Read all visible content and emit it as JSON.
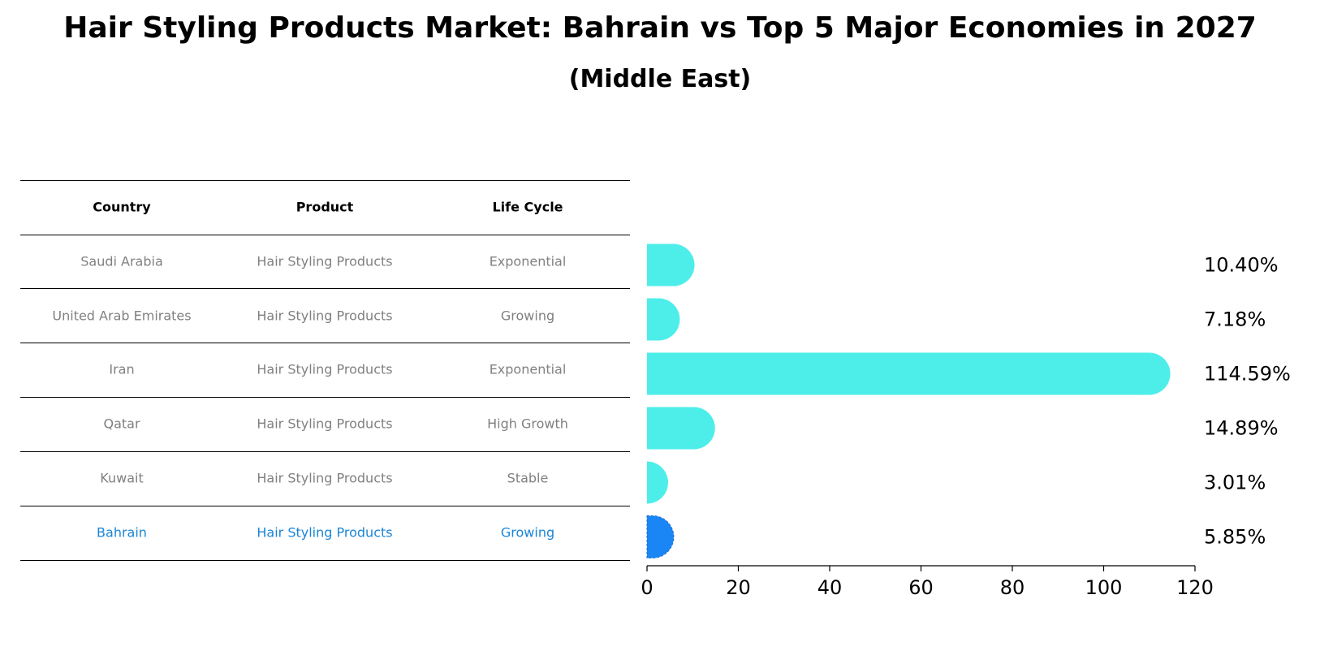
{
  "title": "Hair Styling Products Market: Bahrain vs Top 5 Major Economies in 2027",
  "subtitle": "(Middle East)",
  "table": {
    "headers": [
      "Country",
      "Product",
      "Life Cycle"
    ],
    "rows": [
      {
        "country": "Saudi Arabia",
        "product": "Hair Styling Products",
        "life_cycle": "Exponential"
      },
      {
        "country": "United Arab Emirates",
        "product": "Hair Styling Products",
        "life_cycle": "Growing"
      },
      {
        "country": "Iran",
        "product": "Hair Styling Products",
        "life_cycle": "Exponential"
      },
      {
        "country": "Qatar",
        "product": "Hair Styling Products",
        "life_cycle": "High Growth"
      },
      {
        "country": "Kuwait",
        "product": "Hair Styling Products",
        "life_cycle": "Stable"
      },
      {
        "country": "Bahrain",
        "product": "Hair Styling Products",
        "life_cycle": "Growing"
      }
    ]
  },
  "chart_data": {
    "type": "bar",
    "orientation": "horizontal",
    "categories": [
      "Saudi Arabia",
      "United Arab Emirates",
      "Iran",
      "Qatar",
      "Kuwait",
      "Bahrain"
    ],
    "values": [
      10.4,
      7.18,
      114.59,
      14.89,
      3.01,
      5.85
    ],
    "value_labels": [
      "10.40%",
      "7.18%",
      "114.59%",
      "14.89%",
      "3.01%",
      "5.85%"
    ],
    "xlim": [
      0,
      120
    ],
    "xticks": [
      "0",
      "20",
      "40",
      "60",
      "80",
      "100",
      "120"
    ],
    "highlight": "Bahrain",
    "colors": {
      "default": "#4deeea",
      "highlight": "#1a85f5",
      "highlight_text": "#1a85d6"
    },
    "grid": false
  }
}
